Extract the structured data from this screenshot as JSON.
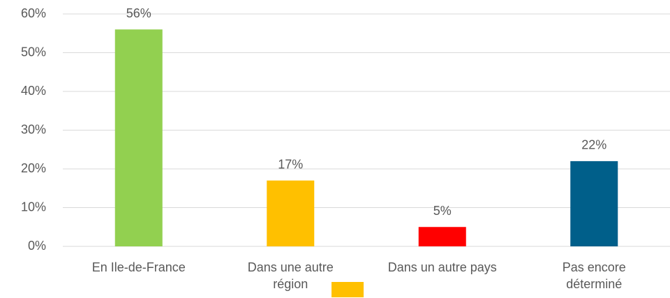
{
  "chart_data": {
    "type": "bar",
    "categories": [
      "En Ile-de-France",
      "Dans une autre région",
      "Dans un autre pays",
      "Pas encore déterminé"
    ],
    "values": [
      56,
      17,
      5,
      22
    ],
    "value_labels": [
      "56%",
      "17%",
      "5%",
      "22%"
    ],
    "colors": [
      "#92d050",
      "#ffc000",
      "#ff0000",
      "#005f8a"
    ],
    "ylim": [
      0,
      60
    ],
    "yticks": [
      {
        "value": 0,
        "label": "0%"
      },
      {
        "value": 10,
        "label": "10%"
      },
      {
        "value": 20,
        "label": "20%"
      },
      {
        "value": 30,
        "label": "30%"
      },
      {
        "value": 40,
        "label": "40%"
      },
      {
        "value": 50,
        "label": "50%"
      },
      {
        "value": 60,
        "label": "60%"
      }
    ],
    "grid": true
  }
}
